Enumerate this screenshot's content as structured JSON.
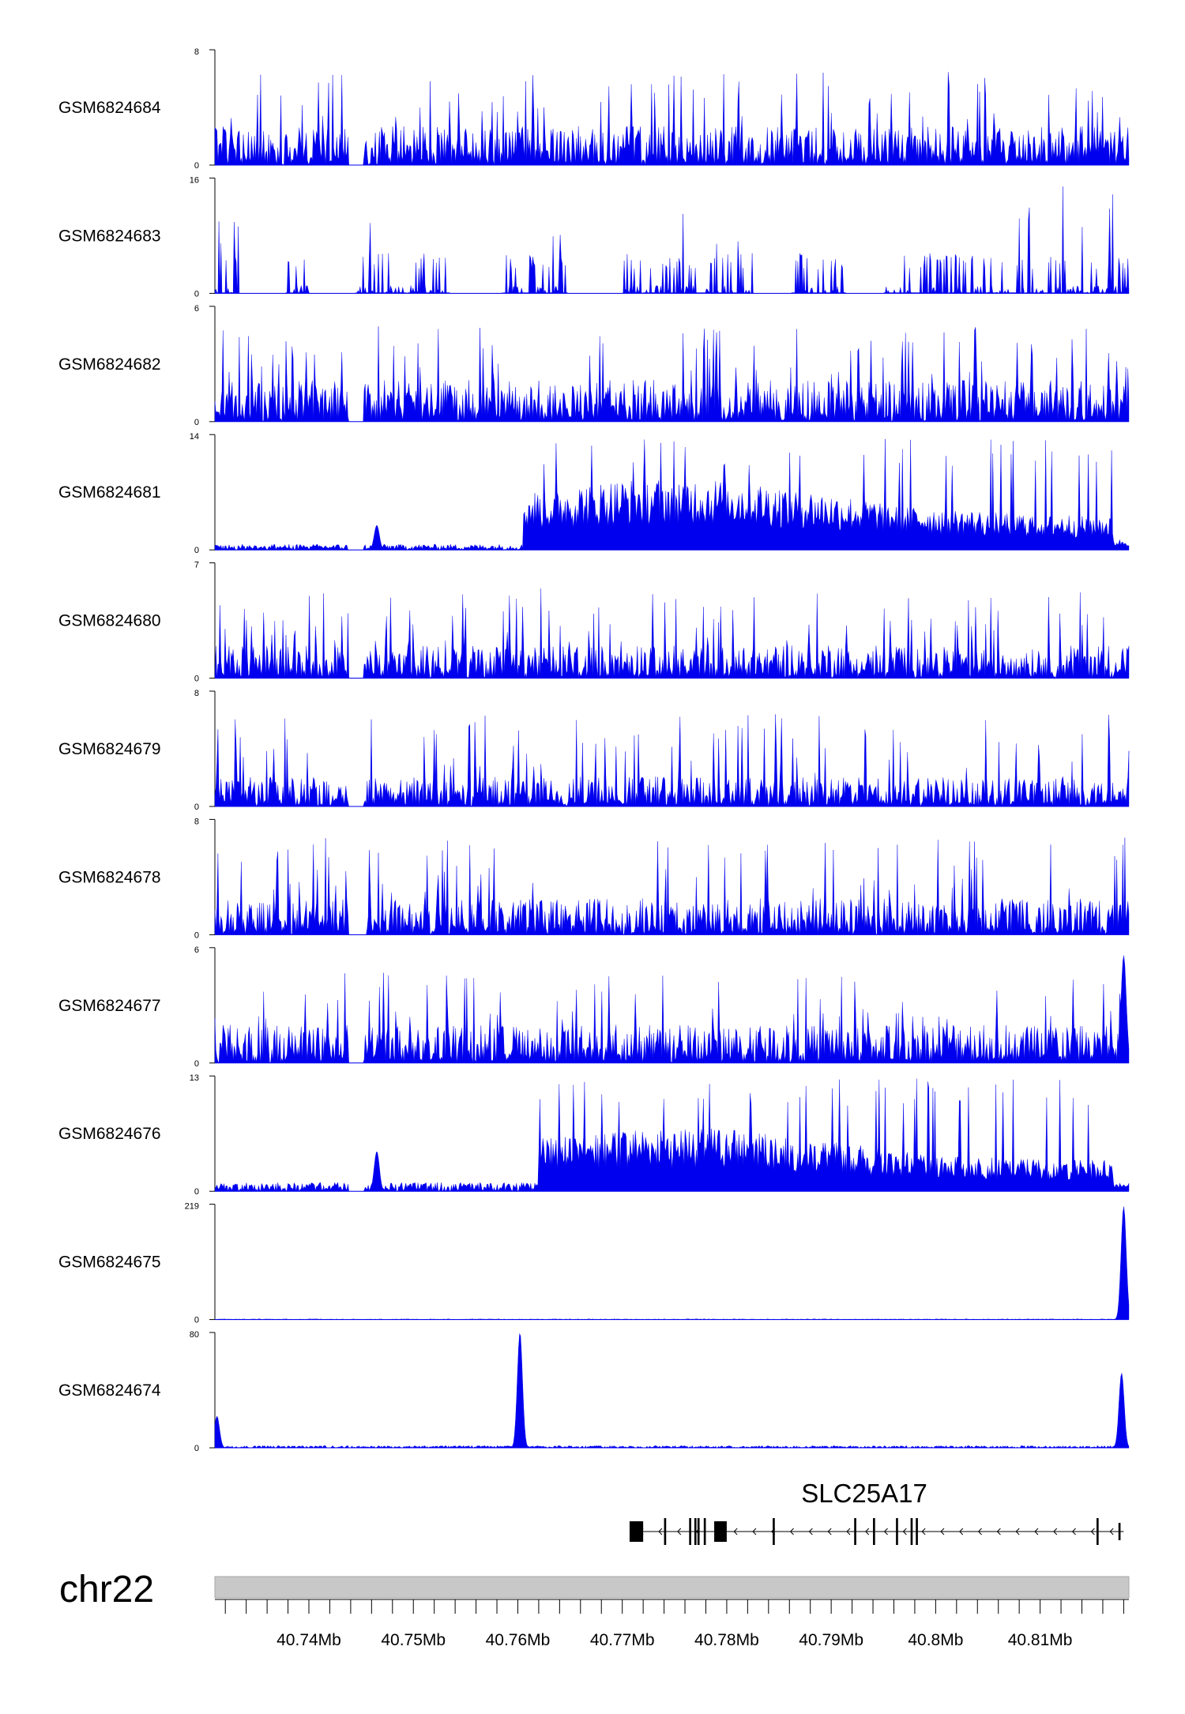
{
  "chart_data": {
    "type": "area",
    "chromosome": "chr22",
    "x_range_mb": [
      40.731,
      40.8185
    ],
    "x_ticks": [
      40.74,
      40.75,
      40.76,
      40.77,
      40.78,
      40.79,
      40.8,
      40.81
    ],
    "x_tick_labels": [
      "40.74Mb",
      "40.75Mb",
      "40.76Mb",
      "40.77Mb",
      "40.78Mb",
      "40.79Mb",
      "40.8Mb",
      "40.81Mb"
    ],
    "fill_color": "#0000ee",
    "tracks": [
      {
        "name": "GSM6824684",
        "ymin": 0,
        "ymax": 8,
        "ymin_label": "0",
        "ymax_label": "8",
        "profile": "noise",
        "base": 3.0,
        "spike": 6.5,
        "gaps": [
          [
            40.7438,
            40.7452
          ]
        ]
      },
      {
        "name": "GSM6824683",
        "ymin": 0,
        "ymax": 16,
        "ymin_label": "0",
        "ymax_label": "16",
        "profile": "sparse",
        "base": 6,
        "spike": 15,
        "gaps": [
          [
            40.7333,
            40.7378
          ],
          [
            40.74,
            40.7445
          ],
          [
            40.7535,
            40.7585
          ],
          [
            40.7648,
            40.77
          ],
          [
            40.7826,
            40.7862
          ],
          [
            40.7914,
            40.795
          ]
        ]
      },
      {
        "name": "GSM6824682",
        "ymin": 0,
        "ymax": 6,
        "ymin_label": "0",
        "ymax_label": "6",
        "profile": "noise",
        "base": 2.4,
        "spike": 5.0,
        "gaps": [
          [
            40.7438,
            40.7452
          ]
        ]
      },
      {
        "name": "GSM6824681",
        "ymin": 0,
        "ymax": 14,
        "ymin_label": "0",
        "ymax_label": "14",
        "profile": "enriched",
        "low": 0.7,
        "high": 6.5,
        "peak": 13.5,
        "rise_mb": 40.7605,
        "gaps": [
          [
            40.7438,
            40.7452
          ]
        ],
        "peaks": [
          {
            "x": 40.7465,
            "y": 3.0
          }
        ]
      },
      {
        "name": "GSM6824680",
        "ymin": 0,
        "ymax": 7,
        "ymin_label": "0",
        "ymax_label": "7",
        "profile": "noise",
        "base": 2.2,
        "spike": 5.5,
        "gaps": [
          [
            40.7438,
            40.7452
          ]
        ]
      },
      {
        "name": "GSM6824679",
        "ymin": 0,
        "ymax": 8,
        "ymin_label": "0",
        "ymax_label": "8",
        "profile": "noise",
        "base": 2.3,
        "spike": 6.5,
        "gaps": [
          [
            40.7438,
            40.7452
          ]
        ]
      },
      {
        "name": "GSM6824678",
        "ymin": 0,
        "ymax": 8,
        "ymin_label": "0",
        "ymax_label": "8",
        "profile": "noise",
        "base": 2.8,
        "spike": 6.8,
        "gaps": [
          [
            40.7438,
            40.7455
          ]
        ]
      },
      {
        "name": "GSM6824677",
        "ymin": 0,
        "ymax": 6,
        "ymin_label": "0",
        "ymax_label": "6",
        "profile": "noise",
        "base": 2.2,
        "spike": 4.8,
        "gaps": [
          [
            40.7438,
            40.7452
          ]
        ],
        "peaks": [
          {
            "x": 40.818,
            "y": 5.6
          }
        ]
      },
      {
        "name": "GSM6824676",
        "ymin": 0,
        "ymax": 13,
        "ymin_label": "0",
        "ymax_label": "13",
        "profile": "enriched",
        "low": 1.0,
        "high": 5.5,
        "peak": 12.8,
        "rise_mb": 40.762,
        "gaps": [
          [
            40.7438,
            40.7452
          ]
        ],
        "peaks": [
          {
            "x": 40.7465,
            "y": 4.5
          }
        ]
      },
      {
        "name": "GSM6824675",
        "ymin": 0,
        "ymax": 219,
        "ymin_label": "0",
        "ymax_label": "219",
        "profile": "flat",
        "base": 1.2,
        "peaks": [
          {
            "x": 40.818,
            "y": 215
          }
        ]
      },
      {
        "name": "GSM6824674",
        "ymin": 0,
        "ymax": 80,
        "ymin_label": "0",
        "ymax_label": "80",
        "profile": "flat",
        "base": 1.5,
        "peaks": [
          {
            "x": 40.7312,
            "y": 22
          },
          {
            "x": 40.7602,
            "y": 80
          },
          {
            "x": 40.8178,
            "y": 52
          }
        ]
      }
    ],
    "gene": {
      "name": "SLC25A17",
      "start_mb": 40.7707,
      "end_mb": 40.818,
      "strand": "-",
      "exons_mb": [
        {
          "start": 40.7707,
          "end": 40.772,
          "coding": true
        },
        {
          "start": 40.774,
          "end": 40.7742,
          "coding": true
        },
        {
          "start": 40.7764,
          "end": 40.7766,
          "coding": true
        },
        {
          "start": 40.7769,
          "end": 40.7771,
          "coding": true
        },
        {
          "start": 40.7772,
          "end": 40.7774,
          "coding": true
        },
        {
          "start": 40.7778,
          "end": 40.778,
          "coding": true
        },
        {
          "start": 40.7788,
          "end": 40.78,
          "coding": true
        },
        {
          "start": 40.7844,
          "end": 40.7846,
          "coding": true
        },
        {
          "start": 40.7922,
          "end": 40.7924,
          "coding": true
        },
        {
          "start": 40.794,
          "end": 40.7942,
          "coding": true
        },
        {
          "start": 40.7962,
          "end": 40.7964,
          "coding": true
        },
        {
          "start": 40.7976,
          "end": 40.7978,
          "coding": true
        },
        {
          "start": 40.7981,
          "end": 40.7983,
          "coding": true
        },
        {
          "start": 40.8154,
          "end": 40.8156,
          "coding": true
        },
        {
          "start": 40.8175,
          "end": 40.8177,
          "coding": false
        }
      ]
    }
  }
}
